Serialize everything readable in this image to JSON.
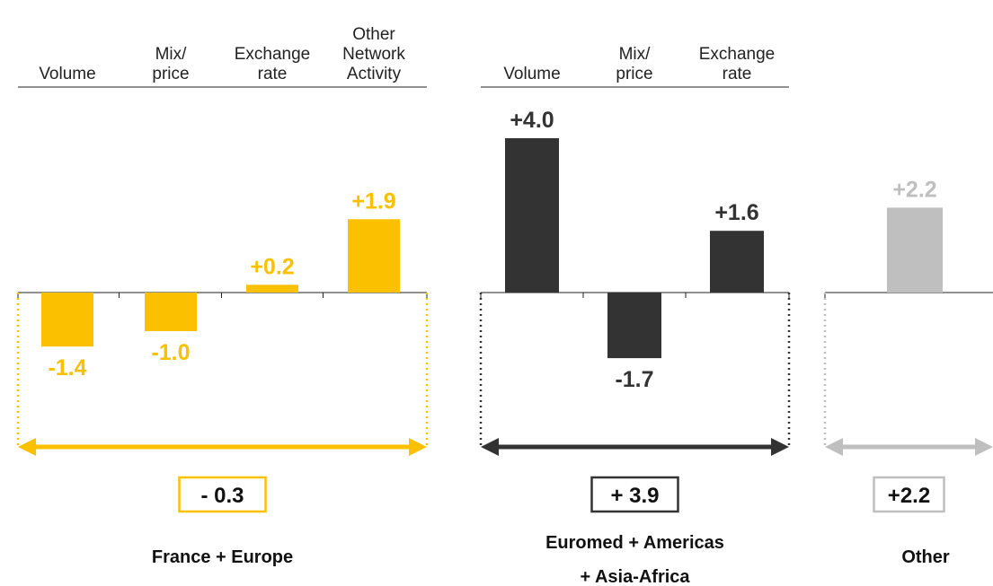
{
  "chart_data": [
    {
      "type": "bar",
      "title": "France + Europe",
      "color": "#fbc100",
      "categories": [
        "Volume",
        "Mix/\nprice",
        "Exchange\nrate",
        "Other\nNetwork\nActivity"
      ],
      "values": [
        -1.4,
        -1.0,
        0.2,
        1.9
      ],
      "value_labels": [
        "-1.4",
        "-1.0",
        "+0.2",
        "+1.9"
      ],
      "total": {
        "value": -0.3,
        "label": "- 0.3"
      }
    },
    {
      "type": "bar",
      "title": "Euromed + Americas\n+ Asia-Africa",
      "color": "#333333",
      "categories": [
        "Volume",
        "Mix/\nprice",
        "Exchange\nrate"
      ],
      "values": [
        4.0,
        -1.7,
        1.6
      ],
      "value_labels": [
        "+4.0",
        "-1.7",
        "+1.6"
      ],
      "total": {
        "value": 3.9,
        "label": "+ 3.9"
      }
    },
    {
      "type": "bar",
      "title": "Other",
      "color": "#bfbfbf",
      "categories": [
        null
      ],
      "values": [
        2.2
      ],
      "value_labels": [
        "+2.2"
      ],
      "total": {
        "value": 2.2,
        "label": "+2.2"
      }
    }
  ]
}
